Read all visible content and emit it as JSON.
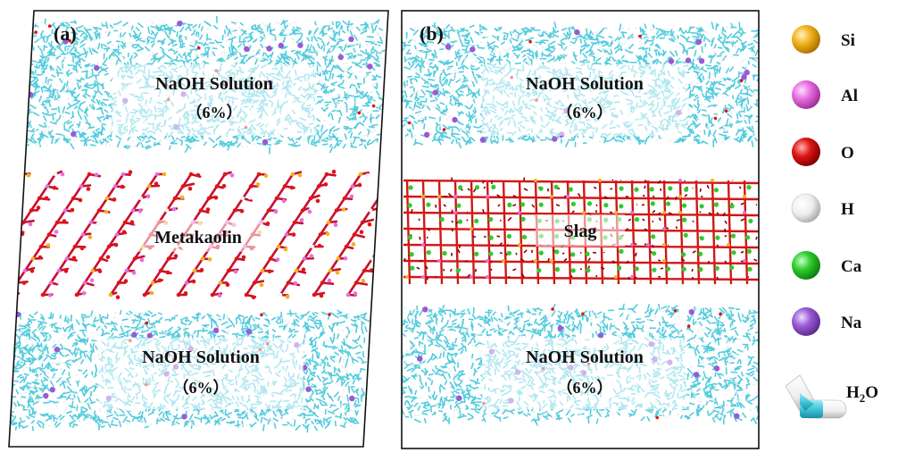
{
  "panels": [
    {
      "id": "a",
      "label": "(a)",
      "top_solution": {
        "name": "NaOH Solution",
        "concentration": "（6%）"
      },
      "middle": {
        "name": "Metakaolin"
      },
      "bottom_solution": {
        "name": "NaOH Solution",
        "concentration": "（6%）"
      }
    },
    {
      "id": "b",
      "label": "(b)",
      "top_solution": {
        "name": "NaOH Solution",
        "concentration": "（6%）"
      },
      "middle": {
        "name": "Slag"
      },
      "bottom_solution": {
        "name": "NaOH Solution",
        "concentration": "（6%）"
      }
    }
  ],
  "legend": {
    "items": [
      {
        "label": "Si",
        "color": "#f2b21e"
      },
      {
        "label": "Al",
        "color": "#e66ee0"
      },
      {
        "label": "O",
        "color": "#e01515"
      },
      {
        "label": "H",
        "color": "#f2f2f2"
      },
      {
        "label": "Ca",
        "color": "#2ecc2e"
      },
      {
        "label": "Na",
        "color": "#9b59d6"
      }
    ],
    "water": {
      "label_main": "H",
      "label_sub": "2",
      "label_end": "O",
      "o_color": "#3fc6d9",
      "h_color": "#f2f2f2"
    }
  },
  "colors": {
    "water": "#3fc6d9",
    "oxygen": "#e01515",
    "aluminum": "#e66ee0",
    "silicon": "#f2b21e",
    "calcium": "#2ecc2e",
    "sodium": "#9b59d6"
  }
}
